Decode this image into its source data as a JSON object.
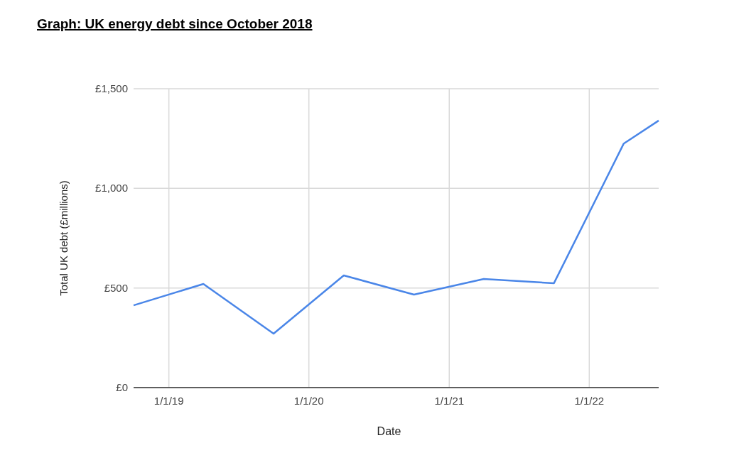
{
  "chart_data": {
    "type": "line",
    "title": "Graph: UK energy debt since October 2018",
    "xlabel": "Date",
    "ylabel": "Total UK debt (£millions)",
    "x": [
      "2018-10",
      "2019-04",
      "2019-10",
      "2020-04",
      "2020-10",
      "2021-04",
      "2021-10",
      "2022-04",
      "2022-07"
    ],
    "series": [
      {
        "color": "#4a86e8",
        "values": [
          413,
          520,
          271,
          563,
          467,
          545,
          524,
          1225,
          1340
        ]
      }
    ],
    "xlim": [
      "2018-10",
      "2022-07"
    ],
    "xticks": [
      {
        "value": "2019-01-01",
        "label": "1/1/19"
      },
      {
        "value": "2020-01-01",
        "label": "1/1/20"
      },
      {
        "value": "2021-01-01",
        "label": "1/1/21"
      },
      {
        "value": "2022-01-01",
        "label": "1/1/22"
      }
    ],
    "ylim": [
      0,
      1500
    ],
    "yticks": [
      {
        "value": 0,
        "label": "£0"
      },
      {
        "value": 500,
        "label": "£500"
      },
      {
        "value": 1000,
        "label": "£1,000"
      },
      {
        "value": 1500,
        "label": "£1,500"
      }
    ],
    "grid": true,
    "marker": "none",
    "line_style": "solid"
  }
}
